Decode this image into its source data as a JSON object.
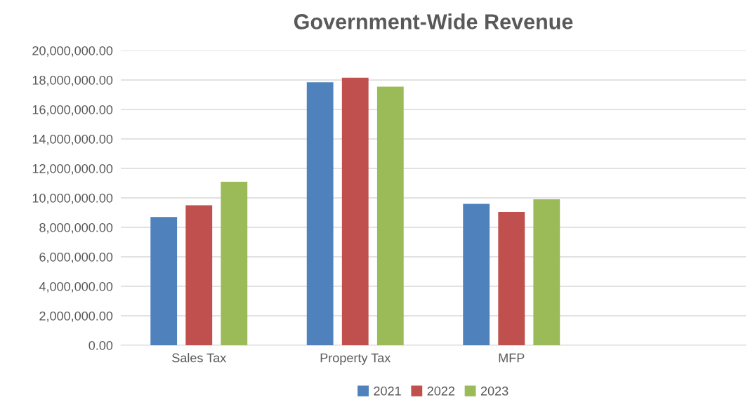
{
  "chart_data": {
    "type": "bar",
    "title": "Government-Wide Revenue",
    "categories": [
      "Sales Tax",
      "Property Tax",
      "MFP",
      null
    ],
    "series": [
      {
        "name": "2021",
        "color": "#4f81bd",
        "values": [
          8700000,
          17850000,
          9600000,
          null
        ]
      },
      {
        "name": "2022",
        "color": "#c0504d",
        "values": [
          9500000,
          18150000,
          9050000,
          null
        ]
      },
      {
        "name": "2023",
        "color": "#9bbb59",
        "values": [
          11100000,
          17550000,
          9900000,
          null
        ]
      }
    ],
    "ylim": [
      0,
      20000000
    ],
    "yticks": [
      {
        "value": 0,
        "label": "0.00"
      },
      {
        "value": 2000000,
        "label": "2,000,000.00"
      },
      {
        "value": 4000000,
        "label": "4,000,000.00"
      },
      {
        "value": 6000000,
        "label": "6,000,000.00"
      },
      {
        "value": 8000000,
        "label": "8,000,000.00"
      },
      {
        "value": 10000000,
        "label": "10,000,000.00"
      },
      {
        "value": 12000000,
        "label": "12,000,000.00"
      },
      {
        "value": 14000000,
        "label": "14,000,000.00"
      },
      {
        "value": 16000000,
        "label": "16,000,000.00"
      },
      {
        "value": 18000000,
        "label": "18,000,000.00"
      },
      {
        "value": 20000000,
        "label": "20,000,000.00"
      }
    ],
    "grid": "y",
    "legend": "bottom"
  }
}
